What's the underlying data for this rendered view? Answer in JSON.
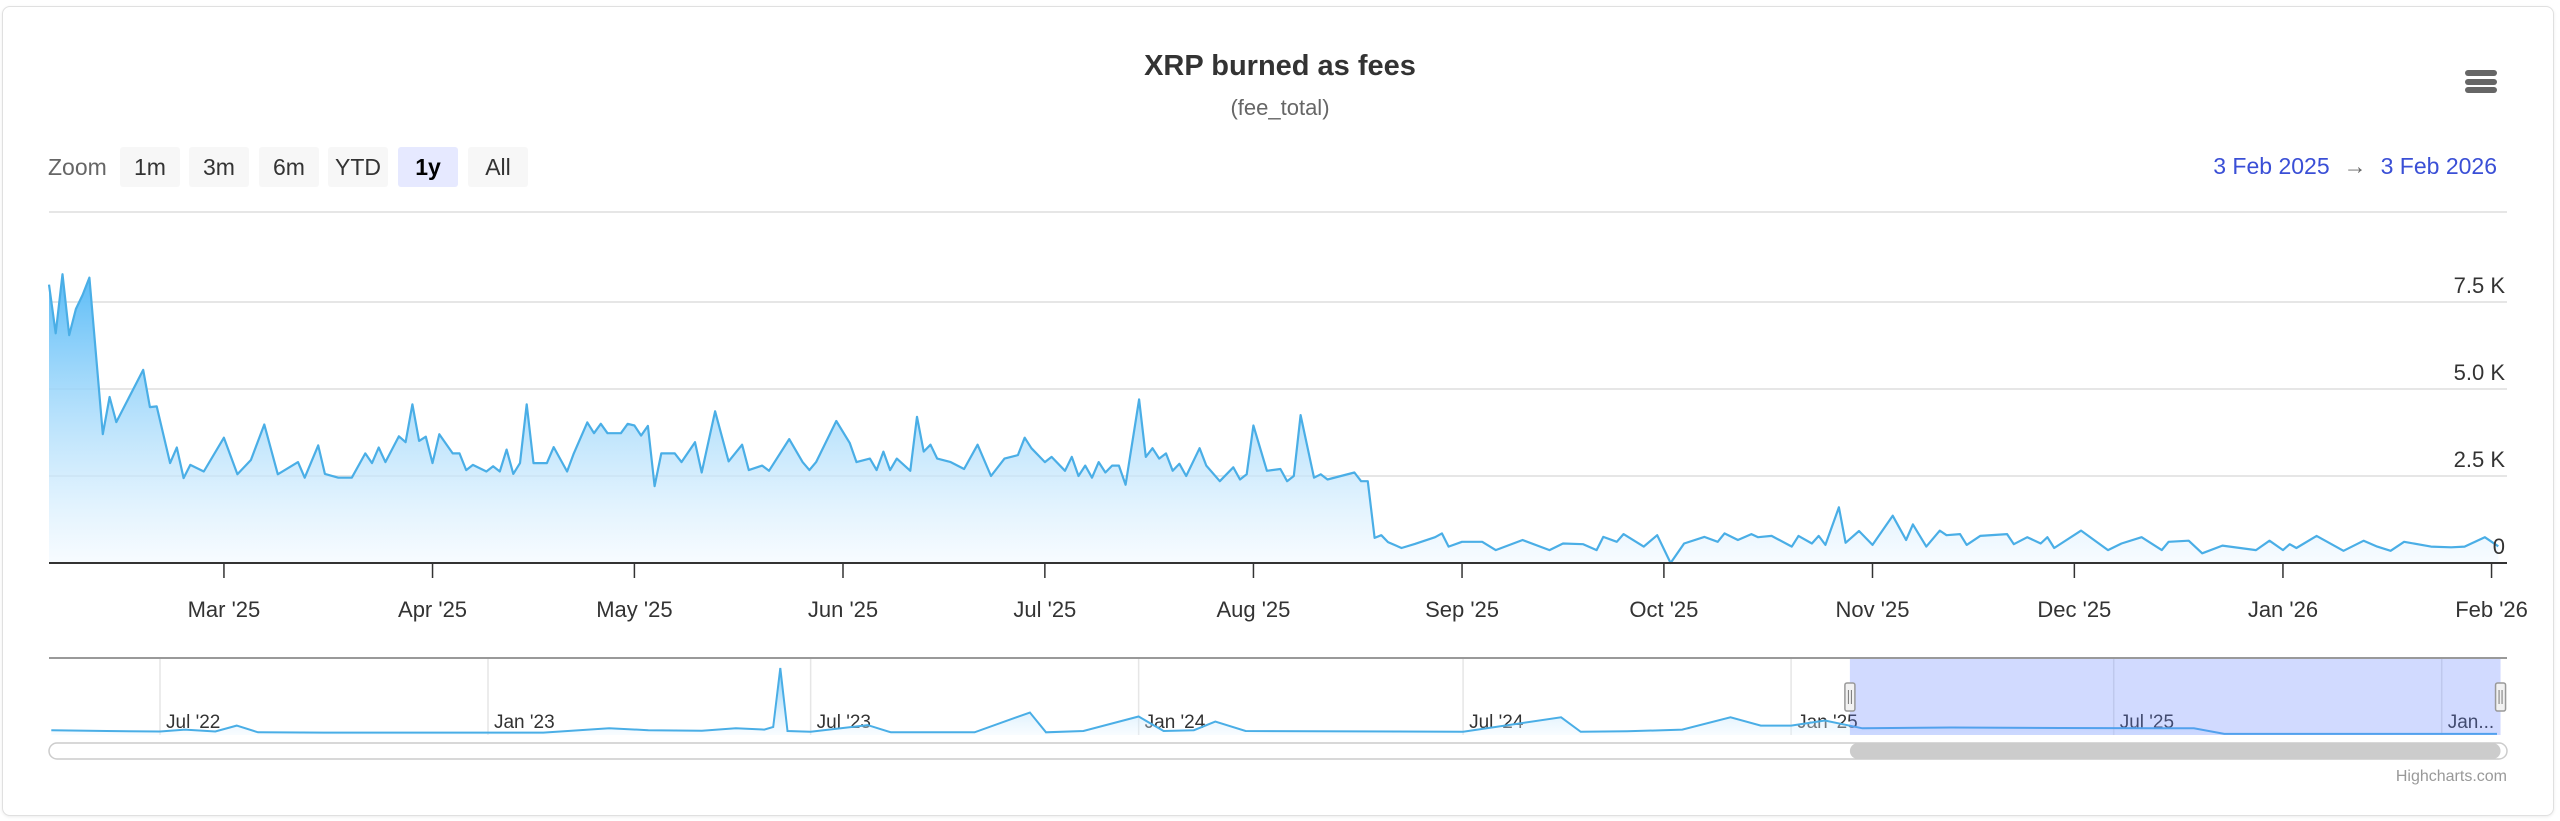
{
  "title": "XRP burned as fees",
  "subtitle": "(fee_total)",
  "menu_icon": "hamburger-menu-icon",
  "range_selector": {
    "label": "Zoom",
    "buttons": [
      "1m",
      "3m",
      "6m",
      "YTD",
      "1y",
      "All"
    ],
    "selected": "1y"
  },
  "date_range": {
    "from": "3 Feb 2025",
    "arrow": "→",
    "to": "3 Feb 2026"
  },
  "credits": "Highcharts.com",
  "chart_data": {
    "type": "area",
    "title": "XRP burned as fees",
    "subtitle": "(fee_total)",
    "xlabel": "",
    "ylabel": "",
    "x_type": "datetime",
    "xlim": [
      "2025-02-03",
      "2026-02-03"
    ],
    "ylim": [
      0,
      10000
    ],
    "grid": true,
    "legend": "none",
    "colors": {
      "line": "#4aaee6",
      "fill_top": "#5bbcf7",
      "fill_bottom": "#f2f9ff",
      "navigator_mask": "#6685ff"
    },
    "yaxis": {
      "tick_values": [
        0,
        2500,
        5000,
        7500
      ],
      "tick_labels": [
        "0",
        "2.5 K",
        "5.0 K",
        "7.5 K"
      ]
    },
    "xaxis": {
      "tick_values": [
        "2025-03-01",
        "2025-04-01",
        "2025-05-01",
        "2025-06-01",
        "2025-07-01",
        "2025-08-01",
        "2025-09-01",
        "2025-10-01",
        "2025-11-01",
        "2025-12-01",
        "2026-01-01",
        "2026-02-01"
      ],
      "tick_labels": [
        "Mar '25",
        "Apr '25",
        "May '25",
        "Jun '25",
        "Jul '25",
        "Aug '25",
        "Sep '25",
        "Oct '25",
        "Nov '25",
        "Dec '25",
        "Jan '26",
        "Feb '26"
      ]
    },
    "series": [
      {
        "values": [
          [
            "2025-02-03",
            8000
          ],
          [
            "2025-02-04",
            6600
          ],
          [
            "2025-02-05",
            8300
          ],
          [
            "2025-02-06",
            6550
          ],
          [
            "2025-02-07",
            7300
          ],
          [
            "2025-02-08",
            7700
          ],
          [
            "2025-02-09",
            8200
          ],
          [
            "2025-02-11",
            3700
          ],
          [
            "2025-02-12",
            4770
          ],
          [
            "2025-02-13",
            4050
          ],
          [
            "2025-02-17",
            5550
          ],
          [
            "2025-02-18",
            4480
          ],
          [
            "2025-02-19",
            4500
          ],
          [
            "2025-02-21",
            2870
          ],
          [
            "2025-02-22",
            3320
          ],
          [
            "2025-02-23",
            2440
          ],
          [
            "2025-02-24",
            2820
          ],
          [
            "2025-02-26",
            2630
          ],
          [
            "2025-03-01",
            3600
          ],
          [
            "2025-03-03",
            2550
          ],
          [
            "2025-03-05",
            2960
          ],
          [
            "2025-03-07",
            3980
          ],
          [
            "2025-03-09",
            2550
          ],
          [
            "2025-03-12",
            2900
          ],
          [
            "2025-03-13",
            2450
          ],
          [
            "2025-03-15",
            3380
          ],
          [
            "2025-03-16",
            2560
          ],
          [
            "2025-03-18",
            2450
          ],
          [
            "2025-03-20",
            2450
          ],
          [
            "2025-03-22",
            3150
          ],
          [
            "2025-03-23",
            2870
          ],
          [
            "2025-03-24",
            3320
          ],
          [
            "2025-03-25",
            2900
          ],
          [
            "2025-03-27",
            3640
          ],
          [
            "2025-03-28",
            3470
          ],
          [
            "2025-03-29",
            4560
          ],
          [
            "2025-03-30",
            3510
          ],
          [
            "2025-03-31",
            3630
          ],
          [
            "2025-04-01",
            2870
          ],
          [
            "2025-04-02",
            3700
          ],
          [
            "2025-04-04",
            3150
          ],
          [
            "2025-04-05",
            3150
          ],
          [
            "2025-04-06",
            2670
          ],
          [
            "2025-04-07",
            2820
          ],
          [
            "2025-04-09",
            2630
          ],
          [
            "2025-04-10",
            2780
          ],
          [
            "2025-04-11",
            2630
          ],
          [
            "2025-04-12",
            3260
          ],
          [
            "2025-04-13",
            2560
          ],
          [
            "2025-04-14",
            2870
          ],
          [
            "2025-04-15",
            4560
          ],
          [
            "2025-04-16",
            2870
          ],
          [
            "2025-04-18",
            2870
          ],
          [
            "2025-04-19",
            3330
          ],
          [
            "2025-04-21",
            2630
          ],
          [
            "2025-04-22",
            3150
          ],
          [
            "2025-04-24",
            4040
          ],
          [
            "2025-04-25",
            3730
          ],
          [
            "2025-04-26",
            4000
          ],
          [
            "2025-04-27",
            3730
          ],
          [
            "2025-04-29",
            3730
          ],
          [
            "2025-04-30",
            4000
          ],
          [
            "2025-05-01",
            3950
          ],
          [
            "2025-05-02",
            3660
          ],
          [
            "2025-05-03",
            3940
          ],
          [
            "2025-05-04",
            2210
          ],
          [
            "2025-05-05",
            3150
          ],
          [
            "2025-05-07",
            3150
          ],
          [
            "2025-05-08",
            2900
          ],
          [
            "2025-05-10",
            3470
          ],
          [
            "2025-05-11",
            2600
          ],
          [
            "2025-05-13",
            4360
          ],
          [
            "2025-05-15",
            2920
          ],
          [
            "2025-05-17",
            3400
          ],
          [
            "2025-05-18",
            2670
          ],
          [
            "2025-05-20",
            2800
          ],
          [
            "2025-05-21",
            2650
          ],
          [
            "2025-05-24",
            3560
          ],
          [
            "2025-05-26",
            2900
          ],
          [
            "2025-05-27",
            2670
          ],
          [
            "2025-05-28",
            2900
          ],
          [
            "2025-05-31",
            4080
          ],
          [
            "2025-06-02",
            3450
          ],
          [
            "2025-06-03",
            2900
          ],
          [
            "2025-06-05",
            3000
          ],
          [
            "2025-06-06",
            2670
          ],
          [
            "2025-06-07",
            3200
          ],
          [
            "2025-06-08",
            2670
          ],
          [
            "2025-06-09",
            3000
          ],
          [
            "2025-06-11",
            2650
          ],
          [
            "2025-06-12",
            4200
          ],
          [
            "2025-06-13",
            3200
          ],
          [
            "2025-06-14",
            3400
          ],
          [
            "2025-06-15",
            3000
          ],
          [
            "2025-06-17",
            2900
          ],
          [
            "2025-06-19",
            2700
          ],
          [
            "2025-06-21",
            3400
          ],
          [
            "2025-06-23",
            2500
          ],
          [
            "2025-06-25",
            3000
          ],
          [
            "2025-06-27",
            3100
          ],
          [
            "2025-06-28",
            3600
          ],
          [
            "2025-06-29",
            3300
          ],
          [
            "2025-07-01",
            2900
          ],
          [
            "2025-07-02",
            3050
          ],
          [
            "2025-07-04",
            2650
          ],
          [
            "2025-07-05",
            3050
          ],
          [
            "2025-07-06",
            2500
          ],
          [
            "2025-07-07",
            2800
          ],
          [
            "2025-07-08",
            2450
          ],
          [
            "2025-07-09",
            2900
          ],
          [
            "2025-07-10",
            2600
          ],
          [
            "2025-07-11",
            2800
          ],
          [
            "2025-07-12",
            2800
          ],
          [
            "2025-07-13",
            2250
          ],
          [
            "2025-07-15",
            4700
          ],
          [
            "2025-07-16",
            3050
          ],
          [
            "2025-07-17",
            3300
          ],
          [
            "2025-07-18",
            3000
          ],
          [
            "2025-07-19",
            3150
          ],
          [
            "2025-07-20",
            2650
          ],
          [
            "2025-07-21",
            2850
          ],
          [
            "2025-07-22",
            2500
          ],
          [
            "2025-07-24",
            3300
          ],
          [
            "2025-07-25",
            2800
          ],
          [
            "2025-07-27",
            2350
          ],
          [
            "2025-07-29",
            2750
          ],
          [
            "2025-07-30",
            2400
          ],
          [
            "2025-07-31",
            2550
          ],
          [
            "2025-08-01",
            3950
          ],
          [
            "2025-08-03",
            2650
          ],
          [
            "2025-08-05",
            2700
          ],
          [
            "2025-08-06",
            2350
          ],
          [
            "2025-08-07",
            2500
          ],
          [
            "2025-08-08",
            4250
          ],
          [
            "2025-08-10",
            2450
          ],
          [
            "2025-08-11",
            2550
          ],
          [
            "2025-08-12",
            2400
          ],
          [
            "2025-08-14",
            2500
          ],
          [
            "2025-08-16",
            2600
          ],
          [
            "2025-08-17",
            2350
          ],
          [
            "2025-08-18",
            2350
          ],
          [
            "2025-08-19",
            720
          ],
          [
            "2025-08-20",
            800
          ],
          [
            "2025-08-21",
            600
          ],
          [
            "2025-08-23",
            430
          ],
          [
            "2025-08-25",
            550
          ],
          [
            "2025-08-28",
            740
          ],
          [
            "2025-08-29",
            850
          ],
          [
            "2025-08-30",
            470
          ],
          [
            "2025-09-01",
            610
          ],
          [
            "2025-09-04",
            610
          ],
          [
            "2025-09-06",
            370
          ],
          [
            "2025-09-10",
            660
          ],
          [
            "2025-09-14",
            370
          ],
          [
            "2025-09-16",
            560
          ],
          [
            "2025-09-19",
            540
          ],
          [
            "2025-09-21",
            370
          ],
          [
            "2025-09-22",
            750
          ],
          [
            "2025-09-24",
            610
          ],
          [
            "2025-09-25",
            830
          ],
          [
            "2025-09-28",
            470
          ],
          [
            "2025-09-30",
            800
          ],
          [
            "2025-10-02",
            0
          ],
          [
            "2025-10-04",
            560
          ],
          [
            "2025-10-07",
            750
          ],
          [
            "2025-10-09",
            610
          ],
          [
            "2025-10-10",
            850
          ],
          [
            "2025-10-12",
            660
          ],
          [
            "2025-10-14",
            830
          ],
          [
            "2025-10-15",
            740
          ],
          [
            "2025-10-17",
            780
          ],
          [
            "2025-10-20",
            470
          ],
          [
            "2025-10-21",
            780
          ],
          [
            "2025-10-23",
            560
          ],
          [
            "2025-10-24",
            780
          ],
          [
            "2025-10-25",
            520
          ],
          [
            "2025-10-27",
            1600
          ],
          [
            "2025-10-28",
            580
          ],
          [
            "2025-10-30",
            920
          ],
          [
            "2025-11-01",
            520
          ],
          [
            "2025-11-04",
            1360
          ],
          [
            "2025-11-06",
            660
          ],
          [
            "2025-11-07",
            1110
          ],
          [
            "2025-11-09",
            470
          ],
          [
            "2025-11-11",
            930
          ],
          [
            "2025-11-12",
            800
          ],
          [
            "2025-11-14",
            830
          ],
          [
            "2025-11-15",
            520
          ],
          [
            "2025-11-17",
            780
          ],
          [
            "2025-11-21",
            830
          ],
          [
            "2025-11-22",
            540
          ],
          [
            "2025-11-24",
            740
          ],
          [
            "2025-11-26",
            560
          ],
          [
            "2025-11-27",
            740
          ],
          [
            "2025-11-28",
            430
          ],
          [
            "2025-12-02",
            930
          ],
          [
            "2025-12-06",
            370
          ],
          [
            "2025-12-08",
            560
          ],
          [
            "2025-12-11",
            740
          ],
          [
            "2025-12-14",
            370
          ],
          [
            "2025-12-15",
            610
          ],
          [
            "2025-12-18",
            640
          ],
          [
            "2025-12-20",
            280
          ],
          [
            "2025-12-23",
            500
          ],
          [
            "2025-12-28",
            370
          ],
          [
            "2025-12-30",
            640
          ],
          [
            "2026-01-01",
            370
          ],
          [
            "2026-01-02",
            540
          ],
          [
            "2026-01-03",
            430
          ],
          [
            "2026-01-06",
            780
          ],
          [
            "2026-01-10",
            350
          ],
          [
            "2026-01-13",
            640
          ],
          [
            "2026-01-15",
            470
          ],
          [
            "2026-01-17",
            350
          ],
          [
            "2026-01-19",
            610
          ],
          [
            "2026-01-23",
            470
          ],
          [
            "2026-01-26",
            450
          ],
          [
            "2026-01-28",
            470
          ],
          [
            "2026-01-31",
            740
          ],
          [
            "2026-02-02",
            480
          ]
        ]
      }
    ]
  },
  "navigator": {
    "tick_values": [
      "2022-07-01",
      "2023-01-01",
      "2023-07-01",
      "2024-01-01",
      "2024-07-01",
      "2025-01-01",
      "2025-07-01",
      "2026-01-01"
    ],
    "tick_labels": [
      "Jul '22",
      "Jan '23",
      "Jul '23",
      "Jan '24",
      "Jul '24",
      "Jan '25",
      "Jul '25",
      "Jan..."
    ],
    "selected_range": [
      "2025-02-03",
      "2026-02-03"
    ],
    "series": [
      [
        "2022-05-01",
        1800
      ],
      [
        "2022-06-01",
        1500
      ],
      [
        "2022-07-01",
        1300
      ],
      [
        "2022-07-15",
        2000
      ],
      [
        "2022-08-01",
        1300
      ],
      [
        "2022-08-13",
        3500
      ],
      [
        "2022-08-25",
        1000
      ],
      [
        "2022-10-01",
        900
      ],
      [
        "2022-12-01",
        900
      ],
      [
        "2023-02-01",
        900
      ],
      [
        "2023-03-10",
        2500
      ],
      [
        "2023-04-01",
        1800
      ],
      [
        "2023-05-01",
        1600
      ],
      [
        "2023-05-20",
        2500
      ],
      [
        "2023-06-05",
        2000
      ],
      [
        "2023-06-10",
        3000
      ],
      [
        "2023-06-14",
        25000
      ],
      [
        "2023-06-18",
        1500
      ],
      [
        "2023-07-01",
        1200
      ],
      [
        "2023-08-02",
        3700
      ],
      [
        "2023-08-15",
        1000
      ],
      [
        "2023-10-01",
        1000
      ],
      [
        "2023-11-01",
        8400
      ],
      [
        "2023-11-10",
        1000
      ],
      [
        "2023-12-01",
        1500
      ],
      [
        "2024-01-01",
        6900
      ],
      [
        "2024-01-15",
        1500
      ],
      [
        "2024-02-01",
        1800
      ],
      [
        "2024-02-13",
        5000
      ],
      [
        "2024-03-01",
        1500
      ],
      [
        "2024-07-01",
        1200
      ],
      [
        "2024-08-25",
        6600
      ],
      [
        "2024-09-05",
        1200
      ],
      [
        "2024-10-01",
        1400
      ],
      [
        "2024-11-01",
        2000
      ],
      [
        "2024-11-28",
        6600
      ],
      [
        "2024-12-15",
        3500
      ],
      [
        "2025-01-01",
        3500
      ],
      [
        "2025-01-20",
        5400
      ],
      [
        "2025-02-10",
        2500
      ],
      [
        "2025-04-01",
        2800
      ],
      [
        "2025-06-01",
        2600
      ],
      [
        "2025-08-15",
        2500
      ],
      [
        "2025-09-01",
        400
      ],
      [
        "2026-02-01",
        400
      ]
    ]
  }
}
